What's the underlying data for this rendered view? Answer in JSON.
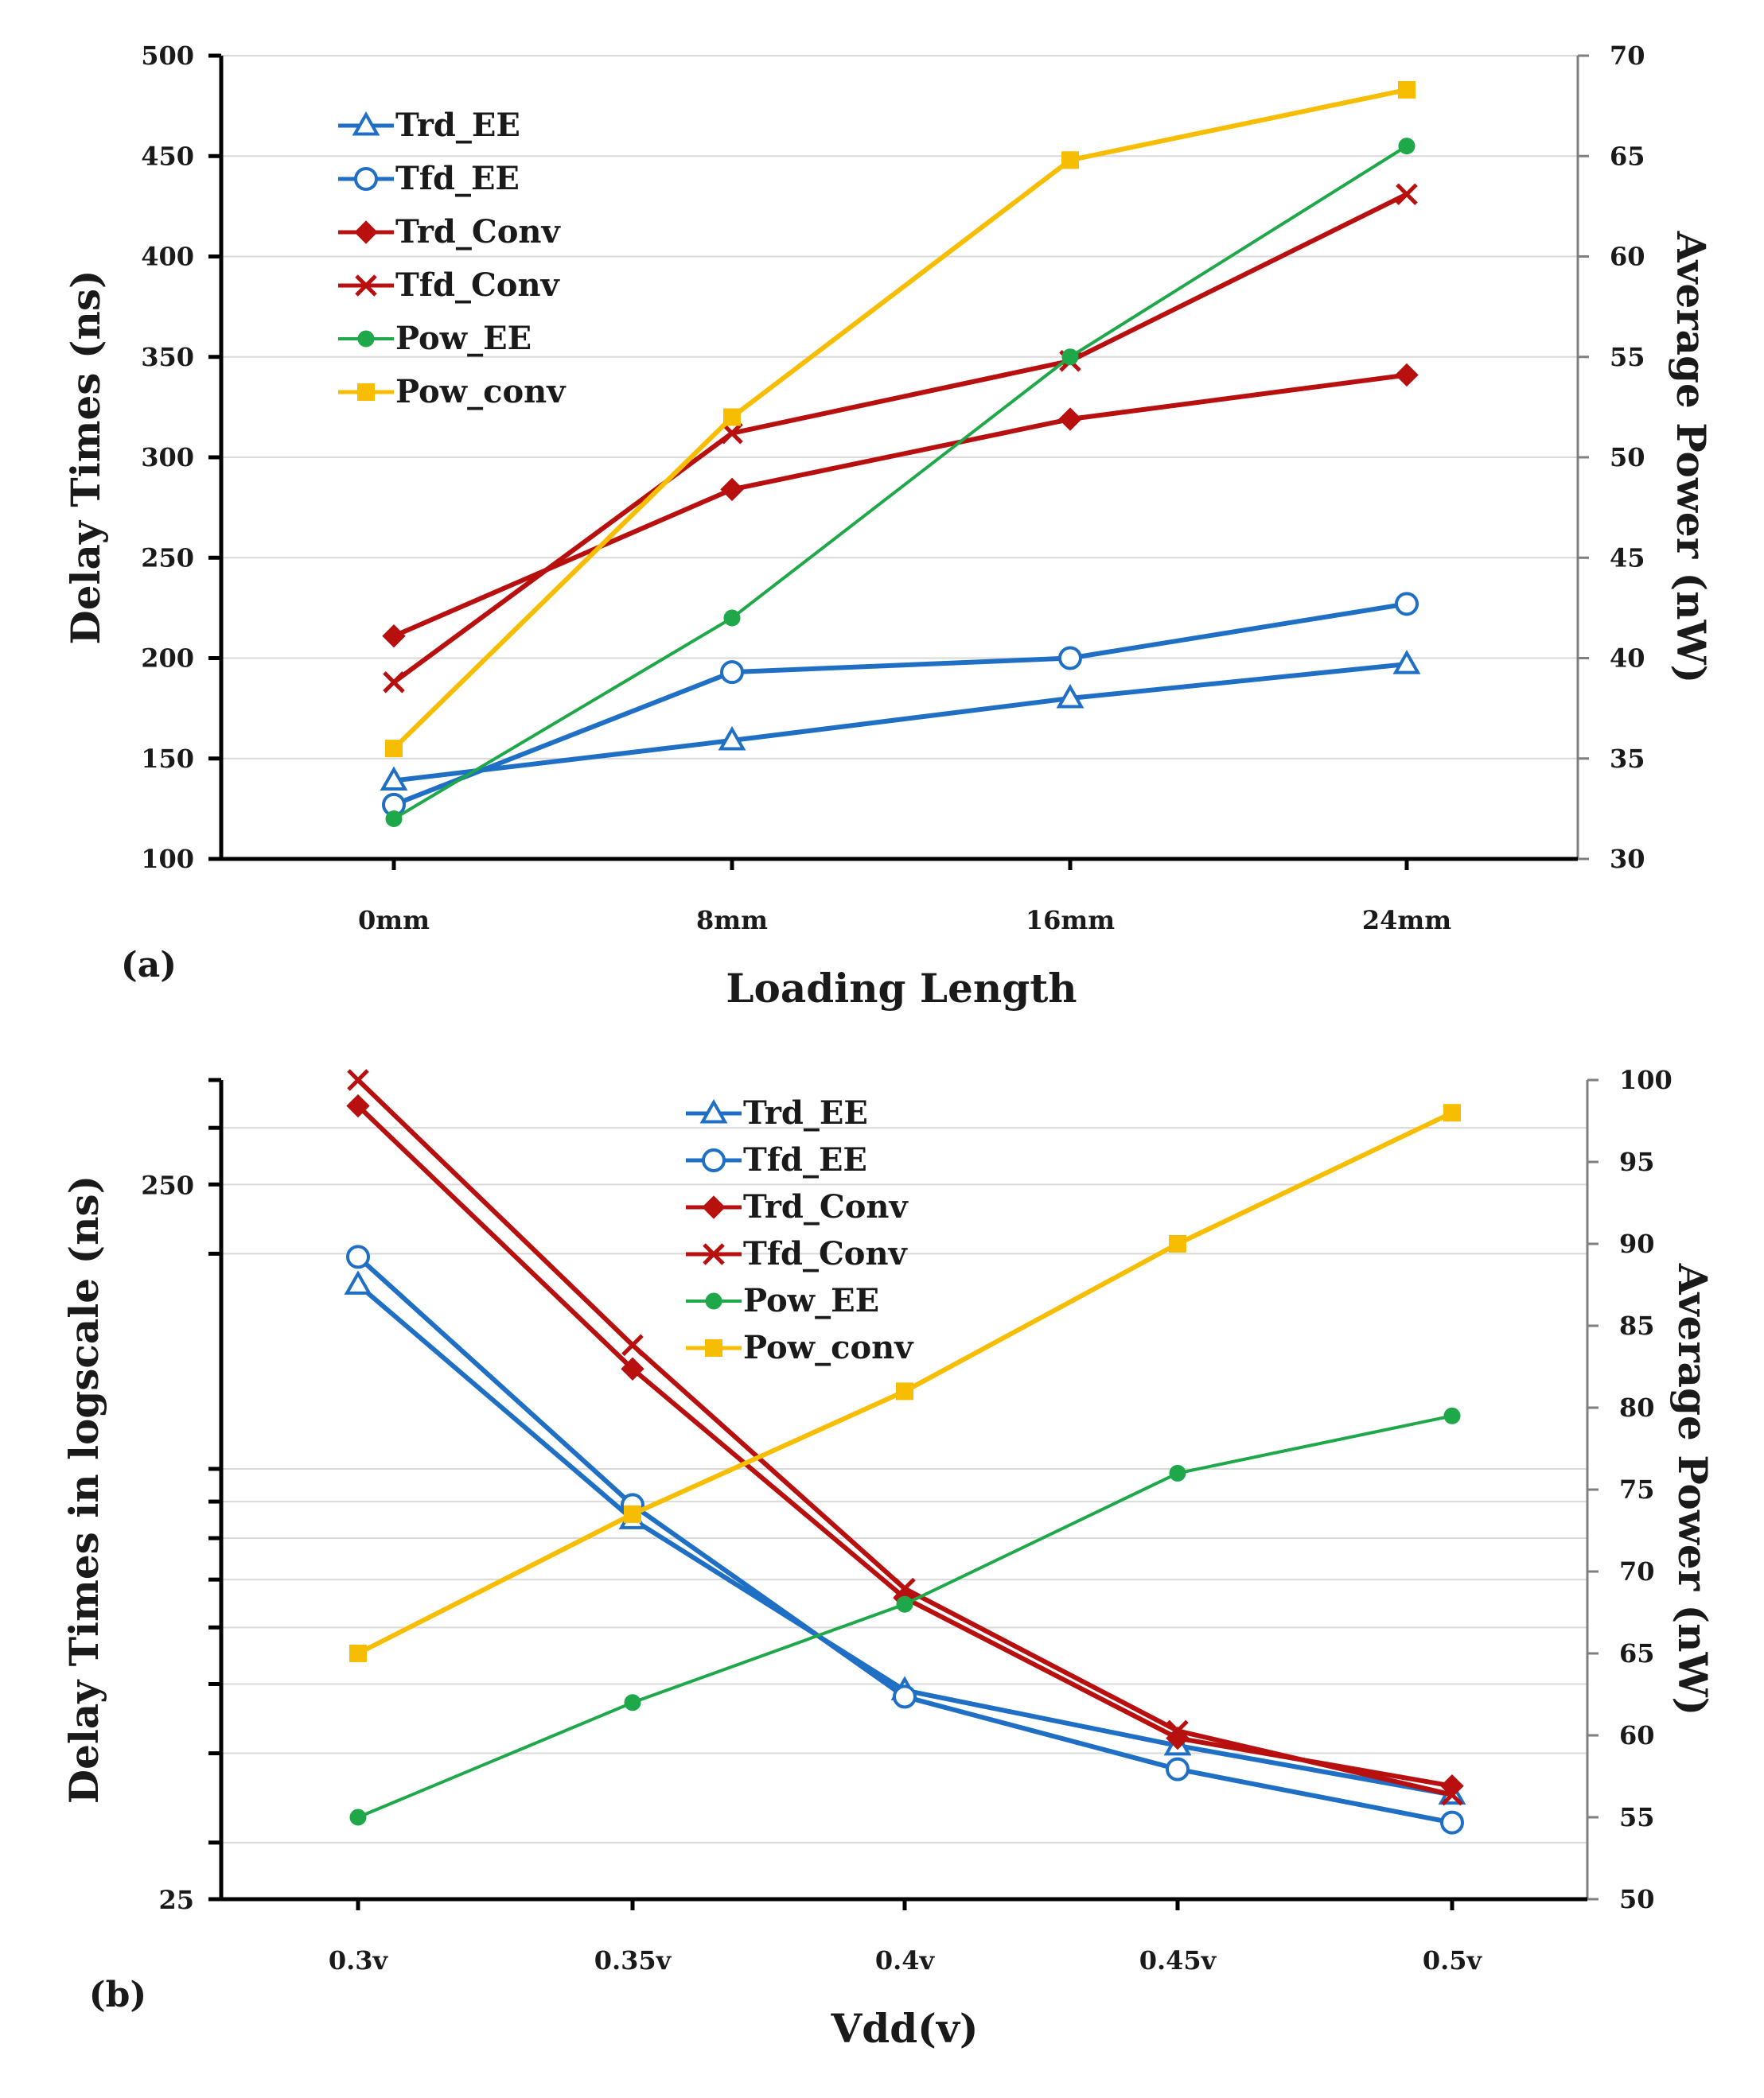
{
  "chart_data": [
    {
      "type": "line",
      "panel_label": "(a)",
      "xlabel": "Loading Length",
      "ylabel": "Delay Times (ns)",
      "y2label": "Average Power (nW)",
      "categories": [
        "0mm",
        "8mm",
        "16mm",
        "24mm"
      ],
      "ylim": [
        100,
        500
      ],
      "yticks": [
        "100",
        "150",
        "200",
        "250",
        "300",
        "350",
        "400",
        "450",
        "500"
      ],
      "y2lim": [
        30,
        70
      ],
      "y2ticks": [
        "30",
        "35",
        "40",
        "45",
        "50",
        "55",
        "60",
        "65",
        "70"
      ],
      "grid": true,
      "legend_position": "top-left",
      "series": [
        {
          "name": "Trd_EE",
          "axis": "left",
          "color": "#1f6fc5",
          "marker": "triangle",
          "values": [
            139,
            159,
            180,
            197
          ]
        },
        {
          "name": "Tfd_EE",
          "axis": "left",
          "color": "#1f6fc5",
          "marker": "circle",
          "values": [
            127,
            193,
            200,
            227
          ]
        },
        {
          "name": "Trd_Conv",
          "axis": "left",
          "color": "#b80f0f",
          "marker": "diamond",
          "values": [
            211,
            284,
            319,
            341
          ]
        },
        {
          "name": "Tfd_Conv",
          "axis": "left",
          "color": "#b80f0f",
          "marker": "x",
          "values": [
            188,
            312,
            348,
            431
          ]
        },
        {
          "name": "Pow_EE",
          "axis": "right",
          "color": "#1ea84a",
          "marker": "dot",
          "values": [
            32,
            42,
            55,
            65.5
          ]
        },
        {
          "name": "Pow_conv",
          "axis": "right",
          "color": "#f7bd00",
          "marker": "square",
          "values": [
            35.5,
            52,
            64.8,
            68.3
          ]
        }
      ]
    },
    {
      "type": "line",
      "panel_label": "(b)",
      "xlabel": "Vdd(v)",
      "ylabel": "Delay Times in logscale (ns)",
      "y2label": "Average Power (nW)",
      "yscale": "log",
      "categories": [
        "0.3v",
        "0.35v",
        "0.4v",
        "0.45v",
        "0.5v"
      ],
      "ylim": [
        25,
        350
      ],
      "yticks": [
        "25",
        "250"
      ],
      "y2lim": [
        50,
        100
      ],
      "y2ticks": [
        "50",
        "55",
        "60",
        "65",
        "70",
        "75",
        "80",
        "85",
        "90",
        "95",
        "100"
      ],
      "grid": true,
      "legend_position": "top-center",
      "series": [
        {
          "name": "Trd_EE",
          "axis": "left",
          "color": "#1f6fc5",
          "marker": "triangle",
          "values": [
            181,
            85,
            49,
            41,
            35
          ]
        },
        {
          "name": "Tfd_EE",
          "axis": "left",
          "color": "#1f6fc5",
          "marker": "circle",
          "values": [
            198,
            89,
            48,
            38,
            32
          ]
        },
        {
          "name": "Trd_Conv",
          "axis": "left",
          "color": "#b80f0f",
          "marker": "diamond",
          "values": [
            322,
            138,
            66,
            42,
            36
          ]
        },
        {
          "name": "Tfd_Conv",
          "axis": "left",
          "color": "#b80f0f",
          "marker": "x",
          "values": [
            350,
            149,
            68,
            43,
            35
          ]
        },
        {
          "name": "Pow_EE",
          "axis": "right",
          "color": "#1ea84a",
          "marker": "dot",
          "values": [
            55,
            62,
            68,
            76,
            79.5
          ]
        },
        {
          "name": "Pow_conv",
          "axis": "right",
          "color": "#f7bd00",
          "marker": "square",
          "values": [
            65,
            73.5,
            81,
            90,
            98
          ]
        }
      ]
    }
  ]
}
